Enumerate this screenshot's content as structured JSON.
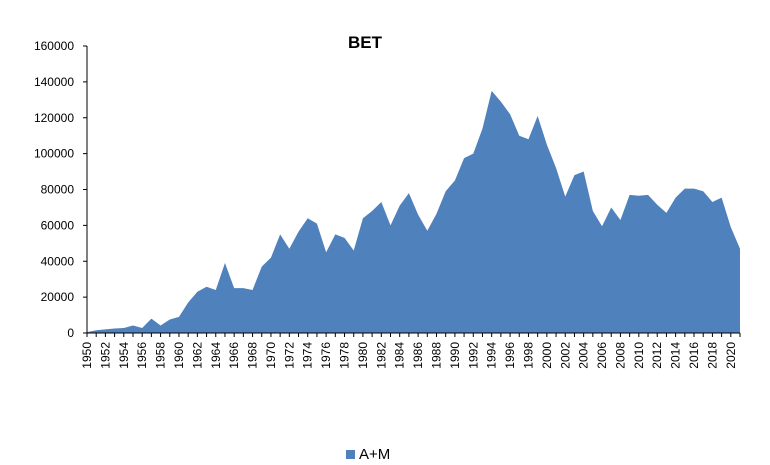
{
  "chart_data": {
    "type": "area",
    "title": "BET",
    "xlabel": "",
    "ylabel": "",
    "ylim": [
      0,
      160000
    ],
    "y_ticks": [
      0,
      20000,
      40000,
      60000,
      80000,
      100000,
      120000,
      140000,
      160000
    ],
    "y_tick_labels": [
      "0",
      "20000",
      "40000",
      "60000",
      "80000",
      "100000",
      "120000",
      "140000",
      "160000"
    ],
    "x": [
      1950,
      1951,
      1952,
      1953,
      1954,
      1955,
      1956,
      1957,
      1958,
      1959,
      1960,
      1961,
      1962,
      1963,
      1964,
      1965,
      1966,
      1967,
      1968,
      1969,
      1970,
      1971,
      1972,
      1973,
      1974,
      1975,
      1976,
      1977,
      1978,
      1979,
      1980,
      1981,
      1982,
      1983,
      1984,
      1985,
      1986,
      1987,
      1988,
      1989,
      1990,
      1991,
      1992,
      1993,
      1994,
      1995,
      1996,
      1997,
      1998,
      1999,
      2000,
      2001,
      2002,
      2003,
      2004,
      2005,
      2006,
      2007,
      2008,
      2009,
      2010,
      2011,
      2012,
      2013,
      2014,
      2015,
      2016,
      2017,
      2018,
      2019,
      2020,
      2021
    ],
    "x_tick_labels": [
      "1950",
      "1952",
      "1954",
      "1956",
      "1958",
      "1960",
      "1962",
      "1964",
      "1966",
      "1968",
      "1970",
      "1972",
      "1974",
      "1976",
      "1978",
      "1980",
      "1982",
      "1984",
      "1986",
      "1988",
      "1990",
      "1992",
      "1994",
      "1996",
      "1998",
      "2000",
      "2002",
      "2004",
      "2006",
      "2008",
      "2010",
      "2012",
      "2014",
      "2016",
      "2018",
      "2020"
    ],
    "series": [
      {
        "name": "A+M",
        "color": "#4f81bd",
        "values": [
          500,
          1500,
          2000,
          2500,
          2800,
          4200,
          2800,
          8000,
          4200,
          7500,
          9000,
          17000,
          23000,
          25800,
          24000,
          39000,
          25000,
          25000,
          24000,
          37000,
          42000,
          55000,
          47000,
          56500,
          64000,
          61000,
          45000,
          55000,
          53000,
          46000,
          64000,
          68000,
          73000,
          60000,
          71000,
          78000,
          66000,
          57000,
          66500,
          79000,
          85000,
          97500,
          100000,
          114000,
          135000,
          129000,
          122000,
          110000,
          108000,
          121000,
          105000,
          92000,
          76000,
          88000,
          90000,
          68000,
          59500,
          70000,
          63000,
          77000,
          76500,
          77000,
          71500,
          67000,
          75500,
          80500,
          80500,
          79000,
          73000,
          75500,
          59000,
          47000
        ]
      }
    ],
    "legend_position": "bottom",
    "grid": false
  }
}
